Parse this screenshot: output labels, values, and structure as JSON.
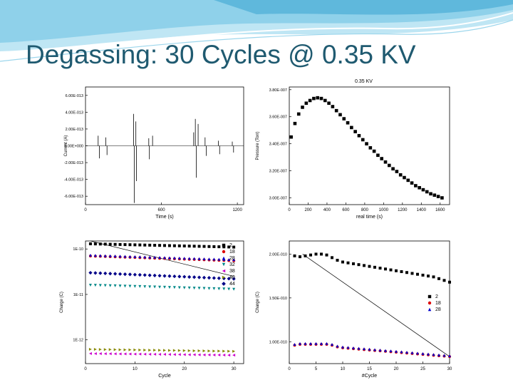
{
  "slide": {
    "title": "Degassing: 30 Cycles @ 0.35 KV",
    "colors": {
      "title": "#1f5a70",
      "swoosh_light": "#bfe6f4",
      "swoosh_dark": "#5fb8dc"
    }
  },
  "chart_data": [
    {
      "type": "line",
      "panel": "top-left",
      "title": "",
      "xlabel": "Time (s)",
      "ylabel": "Current (A)",
      "xlim": [
        0,
        1250
      ],
      "ylim": [
        -7e-13,
        7e-13
      ],
      "x_ticks": [
        "0",
        "600",
        "1200"
      ],
      "x_tick_values": [
        0,
        600,
        1200
      ],
      "y_ticks": [
        "6.00E-013",
        "4.00E-013",
        "2.00E-013",
        "0.00E+000",
        "-2.00E-013",
        "-4.00E-013",
        "-6.00E-013"
      ],
      "y_tick_values": [
        6e-13,
        4e-13,
        2e-13,
        0,
        -2e-13,
        -4e-13,
        -6e-13
      ],
      "spikes": [
        {
          "x": 100,
          "y": 1.2e-13
        },
        {
          "x": 110,
          "y": -1.5e-13
        },
        {
          "x": 160,
          "y": 1e-13
        },
        {
          "x": 170,
          "y": -1.1e-13
        },
        {
          "x": 380,
          "y": 3.8e-13
        },
        {
          "x": 385,
          "y": -6.8e-13
        },
        {
          "x": 398,
          "y": 2.9e-13
        },
        {
          "x": 403,
          "y": -4.2e-13
        },
        {
          "x": 500,
          "y": 9e-14
        },
        {
          "x": 505,
          "y": -1.6e-13
        },
        {
          "x": 530,
          "y": 1.2e-13
        },
        {
          "x": 855,
          "y": 1.6e-13
        },
        {
          "x": 868,
          "y": 3.2e-13
        },
        {
          "x": 875,
          "y": -3.8e-13
        },
        {
          "x": 890,
          "y": 2.6e-13
        },
        {
          "x": 945,
          "y": 1e-13
        },
        {
          "x": 955,
          "y": -1.2e-13
        },
        {
          "x": 1050,
          "y": 6e-14
        },
        {
          "x": 1060,
          "y": -1e-13
        },
        {
          "x": 1160,
          "y": 5e-14
        },
        {
          "x": 1170,
          "y": -8e-14
        }
      ]
    },
    {
      "type": "scatter",
      "panel": "top-right",
      "title": "0.35 KV",
      "xlabel": "real time (s)",
      "ylabel": "Pressure (Torr)",
      "xlim": [
        0,
        1700
      ],
      "ylim": [
        2.95e-07,
        3.82e-07
      ],
      "x_ticks": [
        "0",
        "200",
        "400",
        "600",
        "800",
        "1000",
        "1200",
        "1400",
        "1600"
      ],
      "x_tick_values": [
        0,
        200,
        400,
        600,
        800,
        1000,
        1200,
        1400,
        1600
      ],
      "y_ticks": [
        "3.80E-007",
        "3.60E-007",
        "3.40E-007",
        "3.20E-007",
        "3.00E-007"
      ],
      "y_tick_values": [
        3.8e-07,
        3.6e-07,
        3.4e-07,
        3.2e-07,
        3e-07
      ],
      "x": [
        20,
        60,
        100,
        140,
        180,
        220,
        260,
        300,
        340,
        380,
        420,
        460,
        500,
        540,
        580,
        620,
        660,
        700,
        740,
        780,
        820,
        860,
        900,
        940,
        980,
        1020,
        1060,
        1100,
        1140,
        1180,
        1220,
        1260,
        1300,
        1340,
        1380,
        1420,
        1460,
        1500,
        1540,
        1580,
        1620
      ],
      "y": [
        3.45e-07,
        3.55e-07,
        3.62e-07,
        3.67e-07,
        3.7e-07,
        3.72e-07,
        3.735e-07,
        3.74e-07,
        3.735e-07,
        3.72e-07,
        3.7e-07,
        3.675e-07,
        3.645e-07,
        3.615e-07,
        3.585e-07,
        3.555e-07,
        3.52e-07,
        3.49e-07,
        3.46e-07,
        3.43e-07,
        3.4e-07,
        3.37e-07,
        3.345e-07,
        3.315e-07,
        3.29e-07,
        3.265e-07,
        3.24e-07,
        3.215e-07,
        3.195e-07,
        3.17e-07,
        3.15e-07,
        3.13e-07,
        3.11e-07,
        3.09e-07,
        3.075e-07,
        3.06e-07,
        3.045e-07,
        3.03e-07,
        3.02e-07,
        3.01e-07,
        3e-07
      ]
    },
    {
      "type": "scatter",
      "panel": "bottom-left",
      "title": "",
      "xlabel": "Cycle",
      "ylabel": "Charge (C)",
      "y_scale": "log",
      "xlim": [
        0,
        32
      ],
      "ylim": [
        3e-13,
        1.5e-10
      ],
      "x_ticks": [
        "0",
        "10",
        "20",
        "30"
      ],
      "x_tick_values": [
        0,
        10,
        20,
        30
      ],
      "y_ticks": [
        "1E-10",
        "1E-11",
        "1E-12"
      ],
      "y_tick_values": [
        1e-10,
        1e-11,
        1e-12
      ],
      "legend_position": "top-right",
      "x": [
        1,
        2,
        3,
        4,
        5,
        6,
        7,
        8,
        9,
        10,
        11,
        12,
        13,
        14,
        15,
        16,
        17,
        18,
        19,
        20,
        21,
        22,
        23,
        24,
        25,
        26,
        27,
        28,
        29,
        30
      ],
      "series": [
        {
          "name": "2",
          "color": "#000000",
          "marker": "square",
          "start": 1.3e-10,
          "end": 1.1e-10
        },
        {
          "name": "18",
          "color": "#dd0000",
          "marker": "circle",
          "start": 7e-11,
          "end": 5.5e-11
        },
        {
          "name": "28",
          "color": "#0000cc",
          "marker": "triangle-up",
          "start": 7.3e-11,
          "end": 5.8e-11
        },
        {
          "name": "32",
          "color": "#008888",
          "marker": "triangle-down",
          "start": 1.6e-11,
          "end": 1.3e-11
        },
        {
          "name": "38",
          "color": "#cc00cc",
          "marker": "triangle-left",
          "start": 5e-13,
          "end": 4.6e-13
        },
        {
          "name": "40",
          "color": "#888800",
          "marker": "triangle-right",
          "start": 6.2e-13,
          "end": 5.6e-13
        },
        {
          "name": "44",
          "color": "#000088",
          "marker": "diamond",
          "start": 3e-11,
          "end": 2.2e-11
        }
      ],
      "reference_line": {
        "x": [
          1,
          30
        ],
        "y": [
          1.5e-10,
          2.5e-11
        ]
      }
    },
    {
      "type": "scatter",
      "panel": "bottom-right",
      "title": "",
      "xlabel": "#Cycle",
      "ylabel": "Charge (C)",
      "xlim": [
        0,
        30
      ],
      "ylim": [
        7.5e-11,
        2.15e-10
      ],
      "x_ticks": [
        "0",
        "5",
        "10",
        "15",
        "20",
        "25",
        "30"
      ],
      "x_tick_values": [
        0,
        5,
        10,
        15,
        20,
        25,
        30
      ],
      "y_ticks": [
        "2.00E-010",
        "1.50E-010",
        "1.00E-010"
      ],
      "y_tick_values": [
        2e-10,
        1.5e-10,
        1e-10
      ],
      "legend_position": "right",
      "x": [
        1,
        2,
        3,
        4,
        5,
        6,
        7,
        8,
        9,
        10,
        11,
        12,
        13,
        14,
        15,
        16,
        17,
        18,
        19,
        20,
        21,
        22,
        23,
        24,
        25,
        26,
        27,
        28,
        29,
        30
      ],
      "series": [
        {
          "name": "2",
          "color": "#000000",
          "marker": "square",
          "values": [
            1.98e-10,
            1.97e-10,
            1.98e-10,
            1.99e-10,
            2e-10,
            2e-10,
            1.99e-10,
            1.96e-10,
            1.93e-10,
            1.91e-10,
            1.9e-10,
            1.89e-10,
            1.88e-10,
            1.87e-10,
            1.86e-10,
            1.85e-10,
            1.84e-10,
            1.83e-10,
            1.82e-10,
            1.81e-10,
            1.8e-10,
            1.79e-10,
            1.78e-10,
            1.77e-10,
            1.76e-10,
            1.75e-10,
            1.74e-10,
            1.72e-10,
            1.7e-10,
            1.68e-10
          ]
        },
        {
          "name": "18",
          "color": "#dd0000",
          "marker": "circle",
          "values": [
            9.6e-11,
            9.7e-11,
            9.7e-11,
            9.7e-11,
            9.7e-11,
            9.7e-11,
            9.7e-11,
            9.6e-11,
            9.4e-11,
            9.3e-11,
            9.25e-11,
            9.2e-11,
            9.15e-11,
            9.1e-11,
            9.05e-11,
            9e-11,
            8.95e-11,
            8.9e-11,
            8.85e-11,
            8.8e-11,
            8.75e-11,
            8.7e-11,
            8.65e-11,
            8.6e-11,
            8.55e-11,
            8.5e-11,
            8.45e-11,
            8.4e-11,
            8.35e-11,
            8.3e-11
          ]
        },
        {
          "name": "28",
          "color": "#0000cc",
          "marker": "triangle-up",
          "values": [
            9.7e-11,
            9.8e-11,
            9.8e-11,
            9.8e-11,
            9.8e-11,
            9.8e-11,
            9.8e-11,
            9.7e-11,
            9.5e-11,
            9.4e-11,
            9.35e-11,
            9.3e-11,
            9.25e-11,
            9.2e-11,
            9.15e-11,
            9.1e-11,
            9.05e-11,
            9e-11,
            8.95e-11,
            8.9e-11,
            8.85e-11,
            8.8e-11,
            8.75e-11,
            8.7e-11,
            8.65e-11,
            8.6e-11,
            8.55e-11,
            8.5e-11,
            8.45e-11,
            8.4e-11
          ]
        }
      ],
      "reference_line": {
        "x": [
          2.5,
          30
        ],
        "y": [
          2e-10,
          8.3e-11
        ]
      }
    }
  ]
}
